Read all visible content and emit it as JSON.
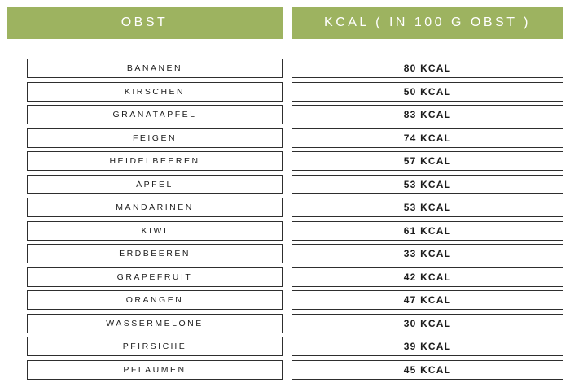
{
  "colors": {
    "header_bg": "#9db360",
    "header_text": "#ffffff",
    "row_border": "#2e2e2e",
    "row_text": "#1c1c1c"
  },
  "header": {
    "col1": "OBST",
    "col2": "KCAL ( IN 100 G OBST )"
  },
  "rows": [
    {
      "fruit": "BANANEN",
      "kcal": "80 KCAL"
    },
    {
      "fruit": "KIRSCHEN",
      "kcal": "50 KCAL"
    },
    {
      "fruit": "GRANATAPFEL",
      "kcal": "83 KCAL"
    },
    {
      "fruit": "FEIGEN",
      "kcal": "74 KCAL"
    },
    {
      "fruit": "HEIDELBEEREN",
      "kcal": "57 KCAL"
    },
    {
      "fruit": "ÁPFEL",
      "kcal": "53 KCAL"
    },
    {
      "fruit": "MANDARINEN",
      "kcal": "53 KCAL"
    },
    {
      "fruit": "KIWI",
      "kcal": "61 KCAL"
    },
    {
      "fruit": "ERDBEEREN",
      "kcal": "33 KCAL"
    },
    {
      "fruit": "GRAPEFRUIT",
      "kcal": "42 KCAL"
    },
    {
      "fruit": "ORANGEN",
      "kcal": "47 KCAL"
    },
    {
      "fruit": "WASSERMELONE",
      "kcal": "30 KCAL"
    },
    {
      "fruit": "PFIRSICHE",
      "kcal": "39 KCAL"
    },
    {
      "fruit": "PFLAUMEN",
      "kcal": "45 KCAL"
    }
  ],
  "chart_data": {
    "type": "table",
    "title": "Obst Kalorientabelle",
    "columns": [
      "OBST",
      "KCAL ( IN 100 G OBST )"
    ],
    "rows": [
      [
        "BANANEN",
        80
      ],
      [
        "KIRSCHEN",
        50
      ],
      [
        "GRANATAPFEL",
        83
      ],
      [
        "FEIGEN",
        74
      ],
      [
        "HEIDELBEEREN",
        57
      ],
      [
        "ÁPFEL",
        53
      ],
      [
        "MANDARINEN",
        53
      ],
      [
        "KIWI",
        61
      ],
      [
        "ERDBEEREN",
        33
      ],
      [
        "GRAPEFRUIT",
        42
      ],
      [
        "ORANGEN",
        47
      ],
      [
        "WASSERMELONE",
        30
      ],
      [
        "PFIRSICHE",
        39
      ],
      [
        "PFLAUMEN",
        45
      ]
    ],
    "unit": "kcal per 100 g"
  }
}
